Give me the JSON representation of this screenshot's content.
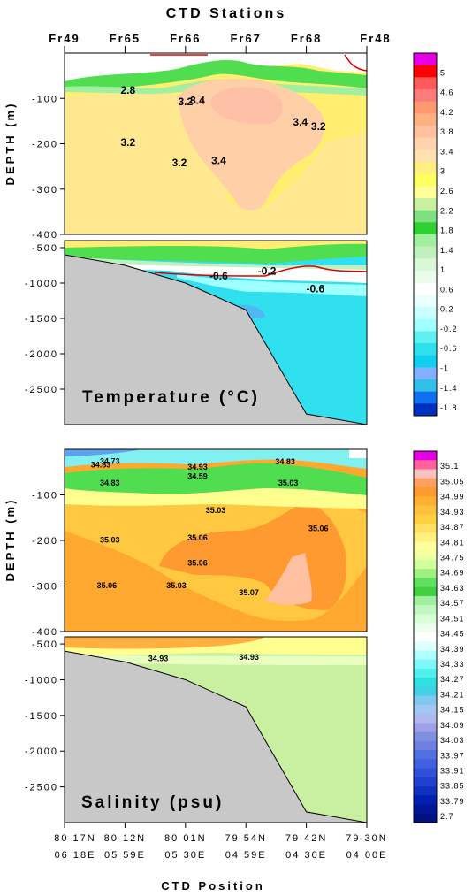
{
  "title": "CTD Stations",
  "stations": [
    "Fr49",
    "Fr65",
    "Fr66",
    "Fr67",
    "Fr68",
    "Fr48"
  ],
  "xaxis": {
    "label": "CTD Position",
    "positions": [
      {
        "lat": "80 17N",
        "lon": "06 18E"
      },
      {
        "lat": "80 12N",
        "lon": "05 59E"
      },
      {
        "lat": "80 01N",
        "lon": "05 30E"
      },
      {
        "lat": "79 54N",
        "lon": "04 59E"
      },
      {
        "lat": "79 42N",
        "lon": "04 30E"
      },
      {
        "lat": "79 30N",
        "lon": "04 00E"
      }
    ]
  },
  "ylabel": "DEPTH (m)",
  "panel_labels": {
    "temperature": "Temperature (°C)",
    "salinity": "Salinity (psu)"
  },
  "chart_data": [
    {
      "type": "heatmap",
      "name": "Temperature upper",
      "yticks": [
        "-100",
        "-200",
        "-300",
        "-400"
      ],
      "depth_range": [
        -400,
        0
      ],
      "contour_labels": [
        {
          "text": "2.8",
          "station": 1.05,
          "depth": -90
        },
        {
          "text": "3.2",
          "station": 2.0,
          "depth": -115
        },
        {
          "text": "3.4",
          "station": 2.2,
          "depth": -112
        },
        {
          "text": "3.2",
          "station": 1.05,
          "depth": -205
        },
        {
          "text": "3.2",
          "station": 1.9,
          "depth": -250
        },
        {
          "text": "3.4",
          "station": 2.55,
          "depth": -245
        },
        {
          "text": "3.4",
          "station": 3.9,
          "depth": -160
        },
        {
          "text": "3.2",
          "station": 4.2,
          "depth": -170
        }
      ]
    },
    {
      "type": "heatmap",
      "name": "Temperature deep",
      "yticks": [
        "-500",
        "-1000",
        "-1500",
        "-2000",
        "-2500"
      ],
      "depth_range": [
        -3000,
        -400
      ],
      "contour_labels": [
        {
          "text": "-0.6",
          "station": 2.55,
          "depth": -950
        },
        {
          "text": "-0.2",
          "station": 3.35,
          "depth": -880
        },
        {
          "text": "-0.6",
          "station": 4.15,
          "depth": -1130
        }
      ],
      "bottom_depths": [
        -600,
        -750,
        -1000,
        -1380,
        -2850,
        -3000
      ]
    },
    {
      "type": "heatmap",
      "name": "Salinity upper",
      "yticks": [
        "-100",
        "-200",
        "-300",
        "-400"
      ],
      "depth_range": [
        -400,
        0
      ],
      "contour_labels": [
        {
          "text": "34.73",
          "station": 0.75,
          "depth": -32
        },
        {
          "text": "34.83",
          "station": 0.6,
          "depth": -40
        },
        {
          "text": "34.83",
          "station": 0.75,
          "depth": -80
        },
        {
          "text": "34.93",
          "station": 2.2,
          "depth": -45
        },
        {
          "text": "34.59",
          "station": 2.2,
          "depth": -65
        },
        {
          "text": "34.83",
          "station": 3.65,
          "depth": -33
        },
        {
          "text": "35.03",
          "station": 3.7,
          "depth": -80
        },
        {
          "text": "35.03",
          "station": 2.5,
          "depth": -140
        },
        {
          "text": "35.03",
          "station": 0.75,
          "depth": -205
        },
        {
          "text": "35.06",
          "station": 2.2,
          "depth": -200
        },
        {
          "text": "35.06",
          "station": 4.2,
          "depth": -180
        },
        {
          "text": "35.06",
          "station": 2.2,
          "depth": -255
        },
        {
          "text": "35.06",
          "station": 0.7,
          "depth": -305
        },
        {
          "text": "35.03",
          "station": 1.85,
          "depth": -305
        },
        {
          "text": "35.07",
          "station": 3.05,
          "depth": -320
        }
      ]
    },
    {
      "type": "heatmap",
      "name": "Salinity deep",
      "yticks": [
        "-500",
        "-1000",
        "-1500",
        "-2000",
        "-2500"
      ],
      "depth_range": [
        -3000,
        -400
      ],
      "contour_labels": [
        {
          "text": "34.93",
          "station": 1.55,
          "depth": -740
        },
        {
          "text": "34.93",
          "station": 3.05,
          "depth": -720
        }
      ],
      "bottom_depths": [
        -600,
        -750,
        -1000,
        -1380,
        -2850,
        -3000
      ]
    }
  ],
  "temperature_colorbar": {
    "colors": [
      "#e600e6",
      "#ff0000",
      "#ff5a5a",
      "#ff7a7a",
      "#ff9a70",
      "#ffb080",
      "#ffc0a0",
      "#ffd2b0",
      "#ffe0b0",
      "#ffee80",
      "#ffff60",
      "#ffff9a",
      "#c8f0a0",
      "#80e080",
      "#30d030",
      "#a0f0a0",
      "#c0f0c0",
      "#d8f8d8",
      "#ecfcec",
      "#ffffff",
      "#eaffff",
      "#c8ffff",
      "#a0ffff",
      "#60f0f0",
      "#30e0ee",
      "#10d0f0",
      "#80b0ff",
      "#30c0e8",
      "#1070f0",
      "#0030c0"
    ],
    "labels": [
      "5",
      "4.6",
      "4.2",
      "3.8",
      "3.4",
      "3",
      "2.6",
      "2.2",
      "1.8",
      "1.4",
      "1",
      "0.6",
      "0.2",
      "-0.2",
      "-0.6",
      "-1",
      "-1.4",
      "-1.8"
    ]
  },
  "salinity_colorbar": {
    "colors": [
      "#e600e6",
      "#ff60a0",
      "#ffc0c0",
      "#ffa060",
      "#ff9a30",
      "#ffb030",
      "#ffc040",
      "#ffd040",
      "#ffe060",
      "#fff080",
      "#ffffa0",
      "#f0ffa0",
      "#d0ffa0",
      "#a0f080",
      "#60e060",
      "#40d040",
      "#a0f0a0",
      "#c0f8c0",
      "#d8ffd8",
      "#ecffec",
      "#ffffff",
      "#e0ffff",
      "#b0ffff",
      "#80f8f8",
      "#50f0f0",
      "#30e0e0",
      "#40d0e8",
      "#80c8f0",
      "#a0c8f0",
      "#b0b8f0",
      "#a0a0e8",
      "#8090e0",
      "#7080e0",
      "#5070e0",
      "#4060e0",
      "#3050d8",
      "#2040d0",
      "#1030c0",
      "#0020b0",
      "#001898",
      "#001080"
    ],
    "labels": [
      "35.1",
      "35.05",
      "34.99",
      "34.93",
      "34.87",
      "34.81",
      "34.75",
      "34.69",
      "34.63",
      "34.57",
      "34.51",
      "34.45",
      "34.39",
      "34.33",
      "34.27",
      "34.21",
      "34.15",
      "34.09",
      "34.03",
      "33.97",
      "33.91",
      "33.85",
      "33.79",
      "2.7"
    ]
  }
}
